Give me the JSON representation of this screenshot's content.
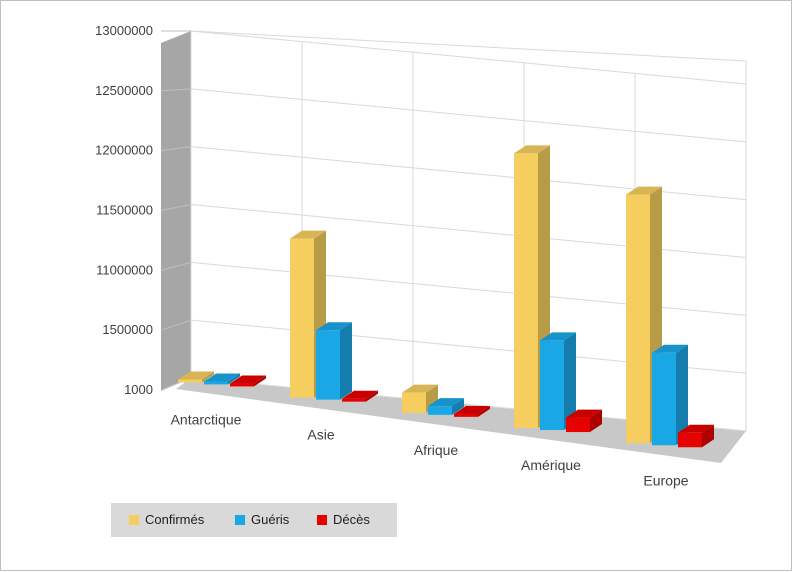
{
  "chart_data": {
    "type": "bar",
    "title": "",
    "xlabel": "",
    "ylabel": "",
    "categories": [
      "Antarctique",
      "Asie",
      "Afrique",
      "Amérique",
      "Europe"
    ],
    "y_tick_labels": [
      "1000",
      "1500000",
      "11000000",
      "11500000",
      "12000000",
      "12500000",
      "13000000"
    ],
    "ylim": [
      0,
      6
    ],
    "scale_note_values_in_tick_index_units": true,
    "series": [
      {
        "name": "Confirmés",
        "color": "#f5ce5f",
        "values": [
          0.05,
          2.75,
          0.35,
          4.75,
          4.3
        ]
      },
      {
        "name": "Guéris",
        "color": "#1aa7e6",
        "values": [
          0.05,
          1.2,
          0.15,
          1.55,
          1.6
        ]
      },
      {
        "name": "Décès",
        "color": "#e60000",
        "values": [
          0.05,
          0.05,
          0.05,
          0.25,
          0.25
        ]
      }
    ],
    "grid": true,
    "legend_position": "bottom-left"
  }
}
